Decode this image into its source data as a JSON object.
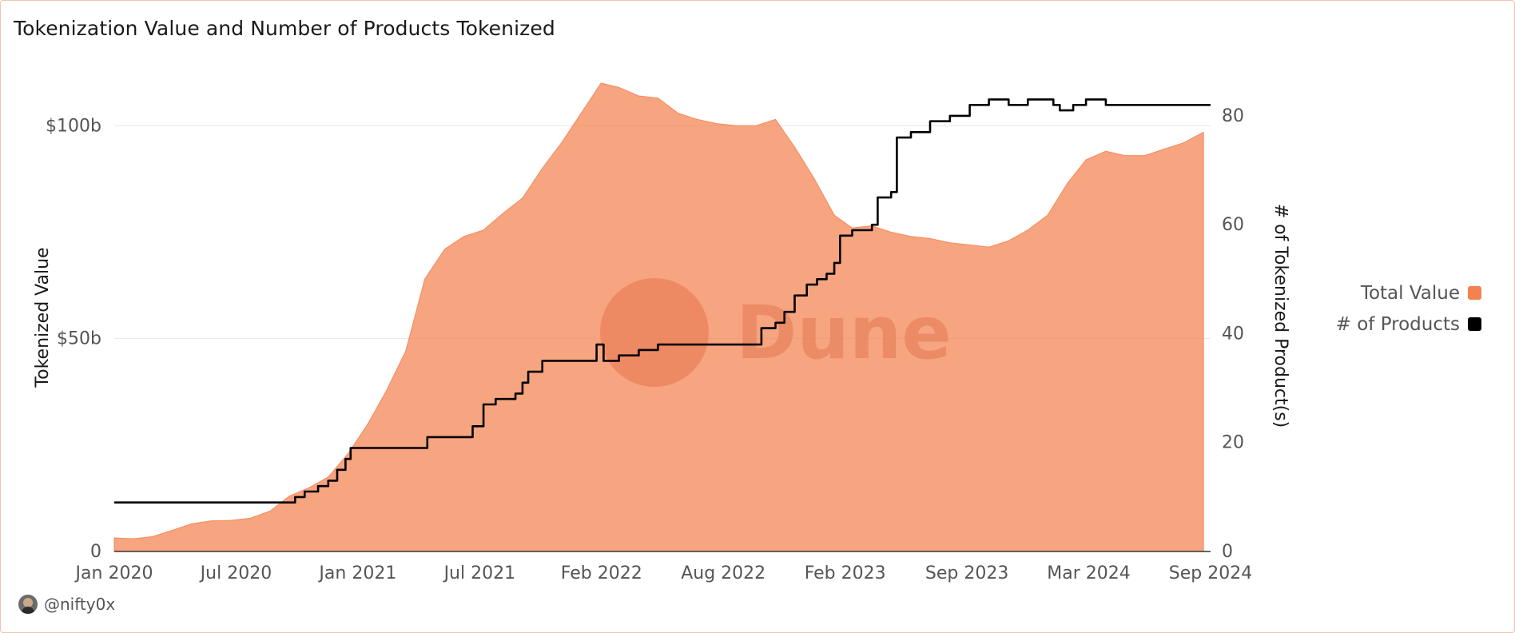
{
  "chart_data": {
    "type": "area",
    "title": "Tokenization Value and Number of Products Tokenized",
    "ylabel": "Tokenized Value",
    "y2label": "# of Tokenized Product(s)",
    "x_ticks": [
      "Jan 2020",
      "Jul 2020",
      "Jan 2021",
      "Jul 2021",
      "Feb 2022",
      "Aug 2022",
      "Feb 2023",
      "Sep 2023",
      "Mar 2024",
      "Sep 2024"
    ],
    "y_ticks": [
      {
        "value": 0,
        "label": "0"
      },
      {
        "value": 50,
        "label": "$50b"
      },
      {
        "value": 100,
        "label": "$100b"
      }
    ],
    "y2_ticks": [
      {
        "value": 0,
        "label": "0"
      },
      {
        "value": 20,
        "label": "20"
      },
      {
        "value": 40,
        "label": "40"
      },
      {
        "value": 60,
        "label": "60"
      },
      {
        "value": 80,
        "label": "80"
      }
    ],
    "ylim": [
      0,
      110
    ],
    "y2lim": [
      0,
      86
    ],
    "xlim": [
      "2020-01-01",
      "2024-09-12"
    ],
    "grid": "horizontal",
    "legend_position": "right",
    "series": [
      {
        "name": "Total Value",
        "axis": "left",
        "unit": "USD billions",
        "color": "#f4814f",
        "points": [
          [
            "2020-01-01",
            3.2
          ],
          [
            "2020-02-01",
            3.0
          ],
          [
            "2020-03-01",
            3.5
          ],
          [
            "2020-04-01",
            5.0
          ],
          [
            "2020-05-01",
            6.5
          ],
          [
            "2020-06-01",
            7.2
          ],
          [
            "2020-07-01",
            7.3
          ],
          [
            "2020-08-01",
            7.8
          ],
          [
            "2020-09-01",
            9.5
          ],
          [
            "2020-10-01",
            13.0
          ],
          [
            "2020-11-01",
            15.0
          ],
          [
            "2020-12-01",
            17.5
          ],
          [
            "2021-01-01",
            23.0
          ],
          [
            "2021-02-01",
            30.0
          ],
          [
            "2021-03-01",
            37.5
          ],
          [
            "2021-04-01",
            47.0
          ],
          [
            "2021-05-01",
            64.0
          ],
          [
            "2021-06-01",
            71.0
          ],
          [
            "2021-07-01",
            74.0
          ],
          [
            "2021-08-01",
            75.5
          ],
          [
            "2021-09-01",
            79.5
          ],
          [
            "2021-10-01",
            83.0
          ],
          [
            "2021-11-01",
            90.0
          ],
          [
            "2021-12-01",
            96.0
          ],
          [
            "2022-01-01",
            103.0
          ],
          [
            "2022-02-01",
            110.0
          ],
          [
            "2022-03-01",
            109.0
          ],
          [
            "2022-04-01",
            107.0
          ],
          [
            "2022-05-01",
            106.5
          ],
          [
            "2022-06-01",
            103.0
          ],
          [
            "2022-07-01",
            101.5
          ],
          [
            "2022-08-01",
            100.5
          ],
          [
            "2022-09-01",
            100.0
          ],
          [
            "2022-10-01",
            100.0
          ],
          [
            "2022-11-01",
            101.5
          ],
          [
            "2022-12-01",
            95.0
          ],
          [
            "2023-01-01",
            87.5
          ],
          [
            "2023-02-01",
            79.0
          ],
          [
            "2023-03-01",
            76.0
          ],
          [
            "2023-04-01",
            76.5
          ],
          [
            "2023-05-01",
            75.0
          ],
          [
            "2023-06-01",
            74.0
          ],
          [
            "2023-07-01",
            73.5
          ],
          [
            "2023-08-01",
            72.5
          ],
          [
            "2023-09-01",
            72.0
          ],
          [
            "2023-10-01",
            71.5
          ],
          [
            "2023-11-01",
            73.0
          ],
          [
            "2023-12-01",
            75.5
          ],
          [
            "2024-01-01",
            79.0
          ],
          [
            "2024-02-01",
            86.5
          ],
          [
            "2024-03-01",
            92.0
          ],
          [
            "2024-04-01",
            94.0
          ],
          [
            "2024-05-01",
            93.0
          ],
          [
            "2024-06-01",
            93.0
          ],
          [
            "2024-07-01",
            94.5
          ],
          [
            "2024-08-01",
            96.0
          ],
          [
            "2024-09-01",
            98.5
          ]
        ]
      },
      {
        "name": "# of Products",
        "axis": "right",
        "color": "#000000",
        "step": true,
        "points": [
          [
            "2020-01-01",
            9
          ],
          [
            "2020-10-01",
            9
          ],
          [
            "2020-10-10",
            10
          ],
          [
            "2020-10-25",
            11
          ],
          [
            "2020-11-15",
            12
          ],
          [
            "2020-12-01",
            13
          ],
          [
            "2020-12-15",
            15
          ],
          [
            "2020-12-28",
            17
          ],
          [
            "2021-01-05",
            19
          ],
          [
            "2021-05-01",
            19
          ],
          [
            "2021-05-05",
            21
          ],
          [
            "2021-07-01",
            21
          ],
          [
            "2021-07-15",
            23
          ],
          [
            "2021-08-01",
            27
          ],
          [
            "2021-08-20",
            28
          ],
          [
            "2021-09-20",
            29
          ],
          [
            "2021-10-01",
            31
          ],
          [
            "2021-10-10",
            33
          ],
          [
            "2021-11-01",
            35
          ],
          [
            "2022-01-15",
            35
          ],
          [
            "2022-01-25",
            38
          ],
          [
            "2022-02-05",
            35
          ],
          [
            "2022-03-01",
            36
          ],
          [
            "2022-04-01",
            37
          ],
          [
            "2022-05-01",
            38
          ],
          [
            "2022-10-01",
            38
          ],
          [
            "2022-10-10",
            41
          ],
          [
            "2022-11-01",
            42
          ],
          [
            "2022-11-15",
            44
          ],
          [
            "2022-12-01",
            47
          ],
          [
            "2022-12-20",
            49
          ],
          [
            "2023-01-05",
            50
          ],
          [
            "2023-01-20",
            51
          ],
          [
            "2023-02-01",
            53
          ],
          [
            "2023-02-10",
            58
          ],
          [
            "2023-03-01",
            59
          ],
          [
            "2023-04-01",
            60
          ],
          [
            "2023-04-10",
            65
          ],
          [
            "2023-05-01",
            66
          ],
          [
            "2023-05-10",
            76
          ],
          [
            "2023-06-01",
            77
          ],
          [
            "2023-07-01",
            79
          ],
          [
            "2023-08-01",
            80
          ],
          [
            "2023-09-01",
            82
          ],
          [
            "2023-10-01",
            83
          ],
          [
            "2023-11-01",
            82
          ],
          [
            "2023-12-01",
            83
          ],
          [
            "2024-01-10",
            82
          ],
          [
            "2024-01-20",
            81
          ],
          [
            "2024-02-10",
            82
          ],
          [
            "2024-03-01",
            83
          ],
          [
            "2024-04-01",
            82
          ],
          [
            "2024-09-12",
            82
          ]
        ]
      }
    ]
  },
  "watermark": {
    "text": "Dune"
  },
  "author": {
    "handle": "@nifty0x"
  }
}
